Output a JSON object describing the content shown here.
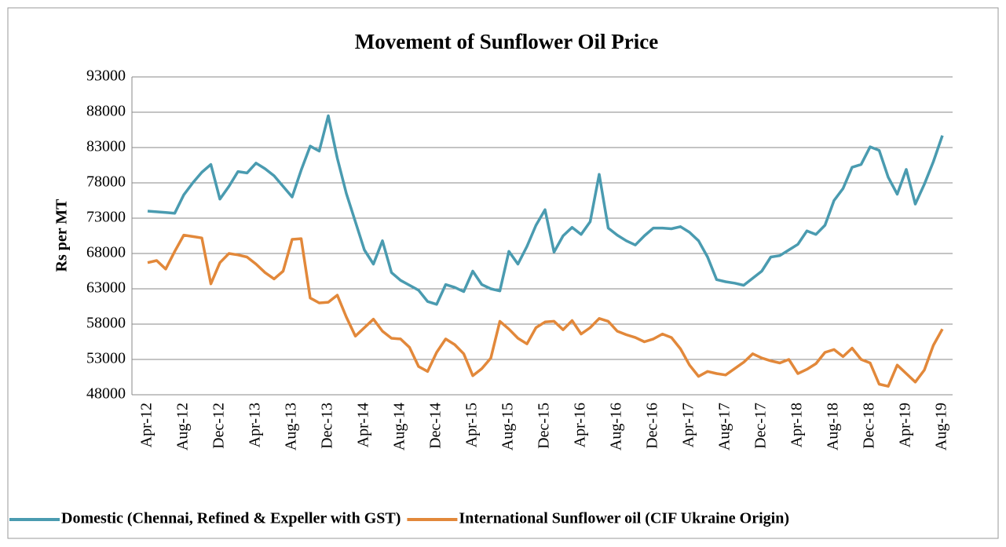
{
  "chart_data": {
    "type": "line",
    "title": "Movement of Sunflower Oil Price",
    "y_label": "Rs per MT",
    "categories": [
      "Apr-12",
      null,
      null,
      null,
      "Aug-12",
      null,
      null,
      null,
      "Dec-12",
      null,
      null,
      null,
      "Apr-13",
      null,
      null,
      null,
      "Aug-13",
      null,
      null,
      null,
      "Dec-13",
      null,
      null,
      null,
      "Apr-14",
      null,
      null,
      null,
      "Aug-14",
      null,
      null,
      null,
      "Dec-14",
      null,
      null,
      null,
      "Apr-15",
      null,
      null,
      null,
      "Aug-15",
      null,
      null,
      null,
      "Dec-15",
      null,
      null,
      null,
      "Apr-16",
      null,
      null,
      null,
      "Aug-16",
      null,
      null,
      null,
      "Dec-16",
      null,
      null,
      null,
      "Apr-17",
      null,
      null,
      null,
      "Aug-17",
      null,
      null,
      null,
      "Dec-17",
      null,
      null,
      null,
      "Apr-18",
      null,
      null,
      null,
      "Aug-18",
      null,
      null,
      null,
      "Dec-18",
      null,
      null,
      null,
      "Apr-19",
      null,
      null,
      null,
      "Aug-19"
    ],
    "series": [
      {
        "name": "Domestic (Chennai, Refined & Expeller with GST)",
        "color": "#4a9bb0",
        "values": [
          74000,
          73900,
          73800,
          73700,
          76300,
          78000,
          79500,
          80600,
          75700,
          77500,
          79600,
          79400,
          80800,
          80000,
          79000,
          77500,
          76000,
          79800,
          83200,
          82500,
          87500,
          81500,
          76500,
          72500,
          68500,
          66500,
          69800,
          65300,
          64200,
          63500,
          62800,
          61200,
          60800,
          63600,
          63200,
          62600,
          65500,
          63600,
          63000,
          62700,
          68300,
          66500,
          69000,
          72000,
          74200,
          68200,
          70500,
          71700,
          70700,
          72500,
          79200,
          71600,
          70600,
          69800,
          69200,
          70500,
          71600,
          71600,
          71500,
          71800,
          71000,
          69800,
          67500,
          64300,
          64000,
          63800,
          63500,
          64500,
          65500,
          67500,
          67700,
          68500,
          69300,
          71200,
          70700,
          72000,
          75500,
          77200,
          80200,
          80600,
          83100,
          82600,
          78800,
          76400,
          79900,
          75000,
          77800,
          81000,
          84700
        ]
      },
      {
        "name": "International Sunflower oil (CIF Ukraine Origin)",
        "color": "#e2883a",
        "values": [
          66700,
          67000,
          65800,
          68300,
          70600,
          70400,
          70200,
          63700,
          66700,
          68000,
          67800,
          67500,
          66500,
          65300,
          64400,
          65500,
          70000,
          70100,
          61700,
          61000,
          61100,
          62100,
          59000,
          56300,
          57500,
          58700,
          57000,
          56000,
          55900,
          54700,
          52000,
          51300,
          54000,
          55900,
          55100,
          53800,
          50700,
          51700,
          53200,
          58400,
          57300,
          56000,
          55200,
          57500,
          58300,
          58400,
          57200,
          58500,
          56600,
          57500,
          58800,
          58400,
          57000,
          56500,
          56100,
          55500,
          55900,
          56600,
          56100,
          54500,
          52200,
          50600,
          51300,
          51000,
          50800,
          51700,
          52600,
          53800,
          53200,
          52800,
          52500,
          53000,
          51000,
          51600,
          52400,
          54000,
          54400,
          53400,
          54600,
          53000,
          52500,
          49500,
          49200,
          52200,
          51000,
          49800,
          51500,
          55000,
          57300
        ]
      }
    ],
    "ylim": [
      48000,
      93000
    ],
    "yticks": [
      48000,
      53000,
      58000,
      63000,
      68000,
      73000,
      78000,
      83000,
      88000,
      93000
    ],
    "grid": true,
    "legend": "bottom"
  }
}
